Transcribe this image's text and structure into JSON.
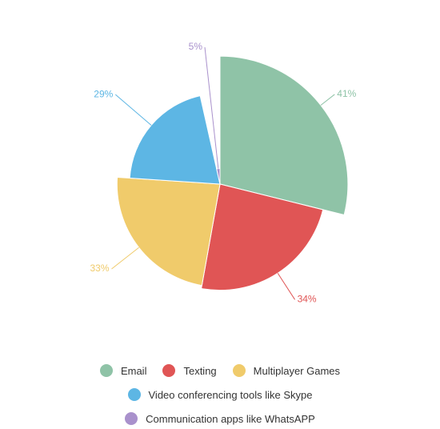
{
  "chart_data": {
    "type": "pie",
    "categories": [
      "Email",
      "Texting",
      "Multiplayer Games",
      "Video conferencing tools like Skype",
      "Communication apps like WhatsAPP"
    ],
    "values": [
      41,
      34,
      33,
      29,
      5
    ],
    "value_labels": [
      "41%",
      "34%",
      "33%",
      "29%",
      "5%"
    ],
    "colors": [
      "#8fc3a7",
      "#e05555",
      "#f0cb6b",
      "#5db6e4",
      "#a991cc"
    ]
  }
}
